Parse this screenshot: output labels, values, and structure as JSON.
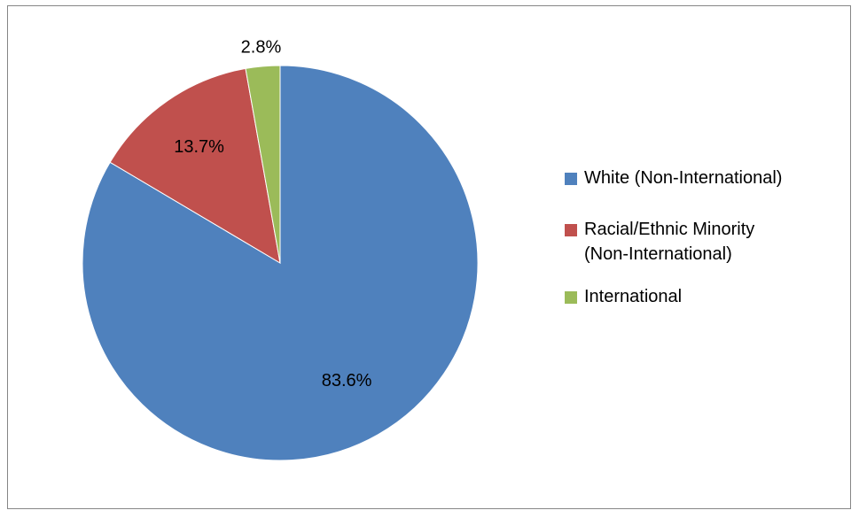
{
  "chart_data": {
    "type": "pie",
    "title": "",
    "slices": [
      {
        "name": "White (Non-International)",
        "value": 83.6,
        "label": "83.6%",
        "color": "#4F81BD"
      },
      {
        "name": "Racial/Ethnic Minority\n(Non-International)",
        "value": 13.7,
        "label": "13.7%",
        "color": "#C0504D"
      },
      {
        "name": "International",
        "value": 2.8,
        "label": "2.8%",
        "color": "#9BBB59"
      }
    ],
    "legend_position": "right"
  }
}
